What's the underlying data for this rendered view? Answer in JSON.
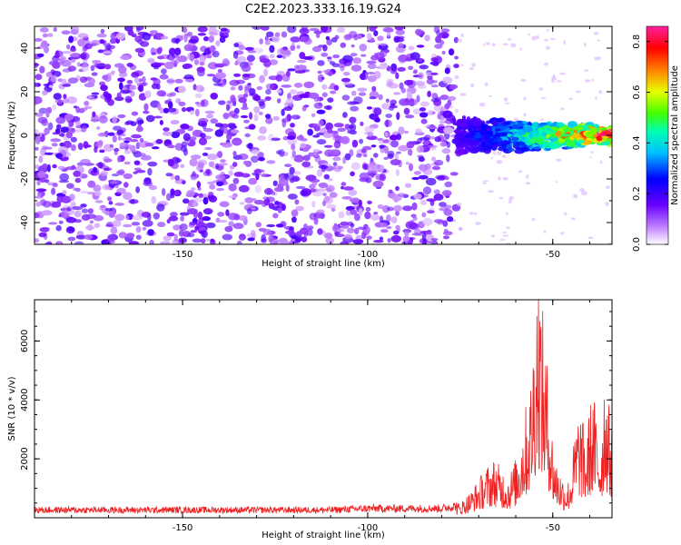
{
  "title": "C2E2.2023.333.16.19.G24",
  "chart_data": [
    {
      "type": "heatmap",
      "xlabel": "Height of straight line (km)",
      "ylabel": "Frequency (Hz)",
      "xlim": [
        -190,
        -34
      ],
      "ylim": [
        -50,
        50
      ],
      "x_ticks": [
        -150,
        -100,
        -50
      ],
      "y_ticks": [
        -40,
        -20,
        0,
        20,
        40
      ],
      "colorbar": {
        "label": "Normalized spectral amplitude",
        "range": [
          0,
          0.86
        ],
        "ticks": [
          0,
          0.2,
          0.4,
          0.6,
          0.8
        ],
        "tick_labels": [
          "0.0",
          "0.2",
          "0.4",
          "0.6",
          "0.8"
        ],
        "colormap": "rainbow (white - purple - blue - cyan - green - yellow - red - magenta)"
      },
      "regions": [
        {
          "x_range": [
            -190,
            -76
          ],
          "y_range": [
            -50,
            50
          ],
          "amplitude_range": [
            0.0,
            0.1
          ],
          "description": "noise"
        },
        {
          "x_range": [
            -76,
            -34
          ],
          "y_range": [
            -10,
            10
          ],
          "amplitude_range": [
            0.1,
            0.8
          ],
          "center_frequency": 0
        }
      ]
    },
    {
      "type": "line",
      "xlabel": "Height of straight line (km)",
      "ylabel": "SNR (10 * v/v)",
      "xlim": [
        -190,
        -34
      ],
      "ylim": [
        0,
        7400
      ],
      "x_ticks": [
        -150,
        -100,
        -50
      ],
      "y_ticks": [
        2000,
        4000,
        6000
      ],
      "color": "#ee2222",
      "series": [
        {
          "x": [
            -190,
            -180,
            -170,
            -160,
            -150,
            -140,
            -130,
            -120,
            -110,
            -100,
            -90,
            -80,
            -75,
            -72,
            -70,
            -68,
            -66,
            -64,
            -62,
            -60,
            -58,
            -56,
            -55,
            -54,
            -53,
            -52,
            -51,
            -50,
            -49,
            -48,
            -47,
            -46,
            -45,
            -44,
            -43,
            -42,
            -41,
            -40,
            -39,
            -38,
            -37,
            -36,
            -35,
            -34
          ],
          "y": [
            250,
            250,
            250,
            250,
            250,
            250,
            250,
            250,
            250,
            300,
            300,
            300,
            400,
            700,
            1000,
            1300,
            1500,
            1300,
            1100,
            1500,
            2500,
            3500,
            5000,
            7000,
            5500,
            4500,
            3500,
            2000,
            1500,
            1200,
            1000,
            900,
            1300,
            2200,
            2800,
            2500,
            2000,
            2900,
            3200,
            2500,
            2000,
            4000,
            3000,
            2500
          ]
        }
      ]
    }
  ]
}
